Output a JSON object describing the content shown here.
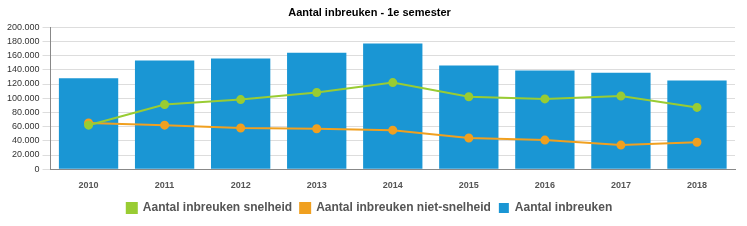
{
  "chart_data": {
    "type": "bar",
    "title": "Aantal inbreuken - 1e semester",
    "categories": [
      "2010",
      "2011",
      "2012",
      "2013",
      "2014",
      "2015",
      "2016",
      "2017",
      "2018"
    ],
    "series": [
      {
        "name": "Aantal inbreuken",
        "type": "bar",
        "color": "#1a96d4",
        "values": [
          128000,
          153000,
          156000,
          164000,
          177000,
          146000,
          139000,
          136000,
          125000
        ]
      },
      {
        "name": "Aantal inbreuken snelheid",
        "type": "line",
        "color": "#99cc33",
        "marker": "circle",
        "values": [
          62000,
          91000,
          98000,
          108000,
          122000,
          102000,
          99000,
          103000,
          87000
        ]
      },
      {
        "name": "Aantal inbreuken niet-snelheid",
        "type": "line",
        "color": "#f0a020",
        "marker": "circle",
        "values": [
          65000,
          62000,
          58000,
          57000,
          55000,
          44000,
          41000,
          34000,
          38000
        ]
      }
    ],
    "ylim": [
      0,
      200000
    ],
    "yticks": [
      0,
      {
        "value": 20000,
        "label": "20.000"
      },
      {
        "value": 40000,
        "label": "40.000"
      },
      {
        "value": 60000,
        "label": "60.000"
      },
      {
        "value": 80000,
        "label": "80.000"
      },
      {
        "value": 100000,
        "label": "100.000"
      },
      {
        "value": 120000,
        "label": "120.000"
      },
      {
        "value": 140000,
        "label": "140.000"
      },
      {
        "value": 160000,
        "label": "160.000"
      },
      {
        "value": 180000,
        "label": "180.000"
      },
      {
        "value": 200000,
        "label": "200.000"
      }
    ],
    "grid": true,
    "legend": "bottom"
  }
}
